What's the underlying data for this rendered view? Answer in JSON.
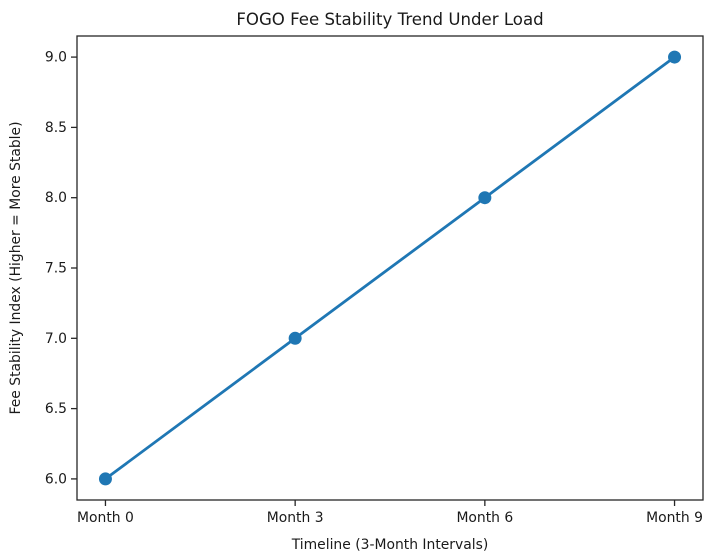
{
  "chart_data": {
    "type": "line",
    "title": "FOGO Fee Stability Trend Under Load",
    "xlabel": "Timeline (3-Month Intervals)",
    "ylabel": "Fee Stability Index (Higher = More Stable)",
    "categories": [
      "Month 0",
      "Month 3",
      "Month 6",
      "Month 9"
    ],
    "x_values": [
      0,
      3,
      6,
      9
    ],
    "values": [
      6.0,
      7.0,
      8.0,
      9.0
    ],
    "xlim": [
      -0.45,
      9.45
    ],
    "ylim": [
      5.85,
      9.15
    ],
    "ytick_values": [
      6.0,
      6.5,
      7.0,
      7.5,
      8.0,
      8.5,
      9.0
    ],
    "ytick_labels": [
      "6.0",
      "6.5",
      "7.0",
      "7.5",
      "8.0",
      "8.5",
      "9.0"
    ],
    "grid": false,
    "legend": "none",
    "line_color": "#1f77b4",
    "marker_color": "#1f77b4",
    "marker_shape": "circle",
    "axis_color": "#262626",
    "background_color": "#ffffff"
  }
}
